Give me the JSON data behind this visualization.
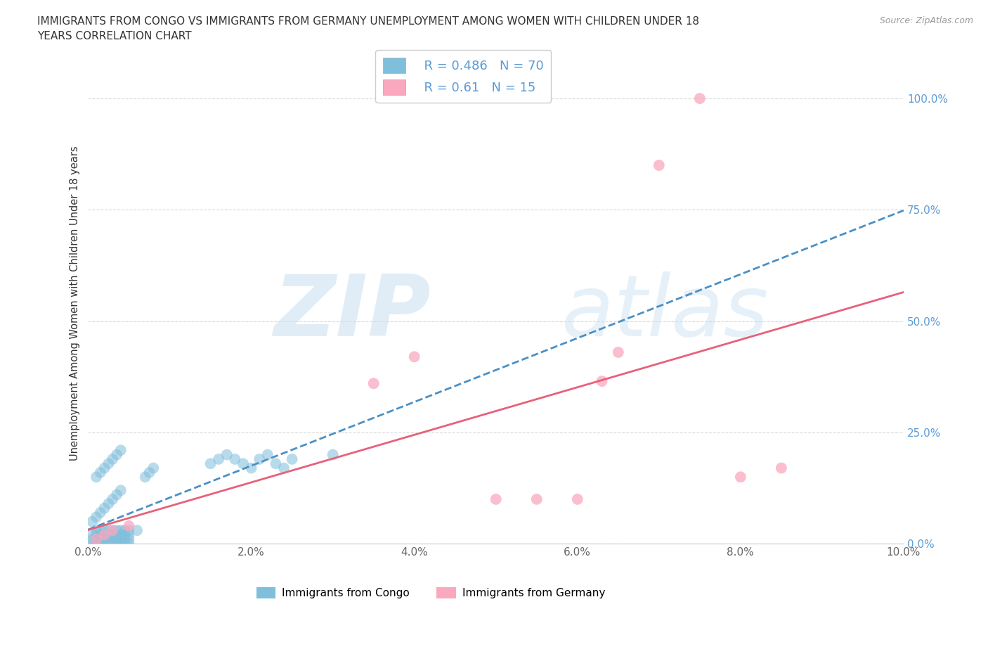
{
  "title_line1": "IMMIGRANTS FROM CONGO VS IMMIGRANTS FROM GERMANY UNEMPLOYMENT AMONG WOMEN WITH CHILDREN UNDER 18",
  "title_line2": "YEARS CORRELATION CHART",
  "source_text": "Source: ZipAtlas.com",
  "ylabel": "Unemployment Among Women with Children Under 18 years",
  "xlim": [
    0.0,
    0.1
  ],
  "ylim": [
    0.0,
    1.08
  ],
  "xticks": [
    0.0,
    0.02,
    0.04,
    0.06,
    0.08,
    0.1
  ],
  "xticklabels": [
    "0.0%",
    "2.0%",
    "4.0%",
    "6.0%",
    "8.0%",
    "10.0%"
  ],
  "yticks": [
    0.0,
    0.25,
    0.5,
    0.75,
    1.0
  ],
  "yticklabels": [
    "0.0%",
    "25.0%",
    "50.0%",
    "75.0%",
    "100.0%"
  ],
  "watermark_zip": "ZIP",
  "watermark_atlas": "atlas",
  "congo_color": "#7fbfdc",
  "congo_line_color": "#4a90c4",
  "germany_color": "#f9a8be",
  "germany_line_color": "#e8607a",
  "congo_R": 0.486,
  "congo_N": 70,
  "germany_R": 0.61,
  "germany_N": 15,
  "legend_label_congo": "Immigrants from Congo",
  "legend_label_germany": "Immigrants from Germany",
  "grid_color": "#d0d0d0",
  "background_color": "#ffffff",
  "axis_color": "#cccccc",
  "text_color": "#333333",
  "tick_label_color_y": "#5b9bd5",
  "tick_label_color_x": "#666666",
  "congo_x": [
    0.0005,
    0.001,
    0.0015,
    0.002,
    0.0025,
    0.003,
    0.0035,
    0.004,
    0.0045,
    0.005,
    0.0005,
    0.001,
    0.0015,
    0.002,
    0.0025,
    0.003,
    0.0035,
    0.004,
    0.0045,
    0.005,
    0.0005,
    0.001,
    0.0015,
    0.002,
    0.0025,
    0.003,
    0.0035,
    0.004,
    0.0045,
    0.005,
    0.001,
    0.0015,
    0.002,
    0.0025,
    0.003,
    0.0035,
    0.004,
    0.0045,
    0.005,
    0.006,
    0.001,
    0.0015,
    0.002,
    0.0025,
    0.003,
    0.0035,
    0.004,
    0.007,
    0.0075,
    0.008,
    0.0005,
    0.001,
    0.0015,
    0.002,
    0.0025,
    0.003,
    0.0035,
    0.004,
    0.015,
    0.016,
    0.017,
    0.018,
    0.019,
    0.02,
    0.021,
    0.022,
    0.023,
    0.024,
    0.025,
    0.03
  ],
  "congo_y": [
    0.0,
    0.0,
    0.0,
    0.0,
    0.0,
    0.0,
    0.0,
    0.0,
    0.0,
    0.0,
    0.01,
    0.01,
    0.01,
    0.01,
    0.01,
    0.01,
    0.01,
    0.01,
    0.01,
    0.01,
    0.02,
    0.02,
    0.02,
    0.02,
    0.02,
    0.02,
    0.02,
    0.02,
    0.02,
    0.02,
    0.03,
    0.03,
    0.03,
    0.03,
    0.03,
    0.03,
    0.03,
    0.03,
    0.03,
    0.03,
    0.15,
    0.16,
    0.17,
    0.18,
    0.19,
    0.2,
    0.21,
    0.15,
    0.16,
    0.17,
    0.05,
    0.06,
    0.07,
    0.08,
    0.09,
    0.1,
    0.11,
    0.12,
    0.18,
    0.19,
    0.2,
    0.19,
    0.18,
    0.17,
    0.19,
    0.2,
    0.18,
    0.17,
    0.19,
    0.2
  ],
  "germany_x": [
    0.001,
    0.002,
    0.003,
    0.005,
    0.035,
    0.04,
    0.05,
    0.055,
    0.06,
    0.063,
    0.065,
    0.07,
    0.075,
    0.08,
    0.085
  ],
  "germany_y": [
    0.01,
    0.02,
    0.03,
    0.04,
    0.36,
    0.42,
    0.1,
    0.1,
    0.1,
    0.365,
    0.43,
    0.85,
    1.0,
    0.15,
    0.17
  ]
}
